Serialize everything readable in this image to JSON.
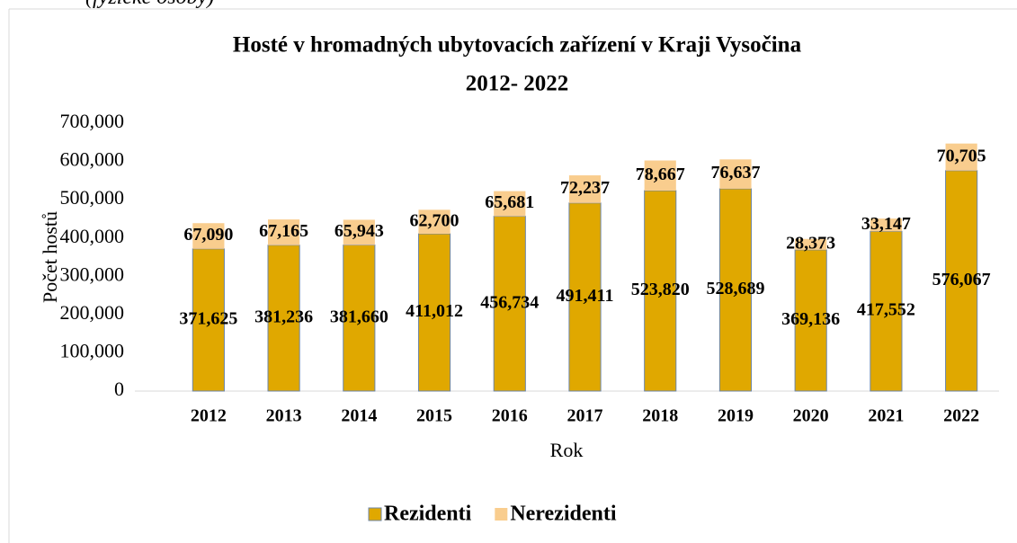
{
  "caption": "(fyzické osoby)",
  "chart_data": {
    "type": "stacked_bar",
    "title": "Hosté v hromadných ubytovacích zařízení v Kraji Vysočina",
    "subtitle": "2012- 2022",
    "x_label": "Rok",
    "y_label": "Počet hostů",
    "categories": [
      "2012",
      "2013",
      "2014",
      "2015",
      "2016",
      "2017",
      "2018",
      "2019",
      "2020",
      "2021",
      "2022"
    ],
    "series": [
      {
        "name": "Rezidenti",
        "color": "#e0a800",
        "values": [
          371625,
          381236,
          381660,
          411012,
          456734,
          491411,
          523820,
          528689,
          369136,
          417552,
          576067
        ],
        "value_labels": [
          "371,625",
          "381,236",
          "381,660",
          "411,012",
          "456,734",
          "491,411",
          "523,820",
          "528,689",
          "369,136",
          "417,552",
          "576,067"
        ]
      },
      {
        "name": "Nerezidenti",
        "color": "#f9cd8e",
        "values": [
          67090,
          67165,
          65943,
          62700,
          65681,
          72237,
          78667,
          76637,
          28373,
          33147,
          70705
        ],
        "value_labels": [
          "67,090",
          "67,165",
          "65,943",
          "62,700",
          "65,681",
          "72,237",
          "78,667",
          "76,637",
          "28,373",
          "33,147",
          "70,705"
        ]
      }
    ],
    "ylim": [
      0,
      700000
    ],
    "yticks": [
      0,
      {
        "value": 100000,
        "label": "100,000"
      },
      {
        "value": 200000,
        "label": "200,000"
      },
      {
        "value": 300000,
        "label": "300,000"
      },
      {
        "value": 400000,
        "label": "400,000"
      },
      {
        "value": 500000,
        "label": "500,000"
      },
      {
        "value": 600000,
        "label": "600,000"
      },
      {
        "value": 700000,
        "label": "700,000"
      }
    ],
    "legend": "bottom"
  }
}
